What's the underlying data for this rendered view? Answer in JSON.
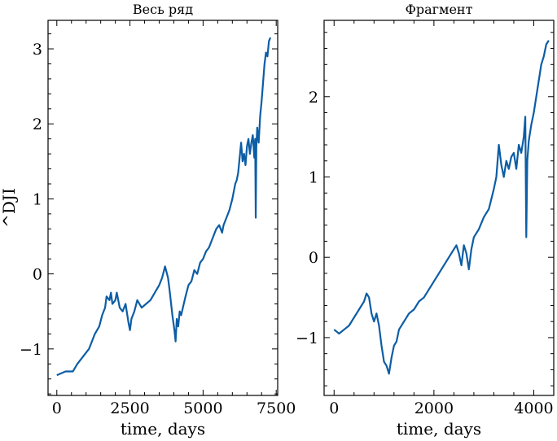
{
  "chart_data": [
    {
      "type": "line",
      "title": "Весь ряд",
      "xlabel": "time, days",
      "ylabel": "^DJI",
      "xlim": [
        -300,
        7550
      ],
      "ylim": [
        -1.62,
        3.38
      ],
      "xticks": [
        0,
        2500,
        5000,
        7500
      ],
      "xtick_labels": [
        "0",
        "2500",
        "5000",
        "7500"
      ],
      "yticks": [
        -1,
        0,
        1,
        2,
        3
      ],
      "ytick_labels": [
        "−1",
        "0",
        "1",
        "2",
        "3"
      ],
      "grid": false,
      "series": [
        {
          "color": "#0c5da5",
          "x": [
            0,
            300,
            550,
            700,
            900,
            1100,
            1300,
            1450,
            1550,
            1650,
            1700,
            1800,
            1850,
            1900,
            2000,
            2050,
            2150,
            2250,
            2350,
            2450,
            2500,
            2550,
            2650,
            2750,
            2900,
            3050,
            3200,
            3350,
            3500,
            3600,
            3700,
            3800,
            3850,
            3950,
            4020,
            4060,
            4100,
            4150,
            4200,
            4250,
            4400,
            4500,
            4600,
            4700,
            4800,
            4900,
            5000,
            5100,
            5200,
            5300,
            5450,
            5550,
            5650,
            5700,
            5800,
            5900,
            6000,
            6050,
            6100,
            6150,
            6200,
            6250,
            6300,
            6350,
            6400,
            6450,
            6500,
            6550,
            6600,
            6650,
            6700,
            6750,
            6780,
            6800,
            6820,
            6850,
            6900,
            6950,
            7000,
            7050,
            7100,
            7150,
            7200,
            7250,
            7300
          ],
          "values": [
            -1.35,
            -1.3,
            -1.3,
            -1.2,
            -1.1,
            -1.0,
            -0.8,
            -0.7,
            -0.55,
            -0.45,
            -0.3,
            -0.35,
            -0.25,
            -0.4,
            -0.35,
            -0.25,
            -0.45,
            -0.5,
            -0.4,
            -0.65,
            -0.75,
            -0.6,
            -0.5,
            -0.35,
            -0.45,
            -0.4,
            -0.35,
            -0.25,
            -0.15,
            -0.05,
            0.1,
            -0.05,
            -0.2,
            -0.55,
            -0.75,
            -0.9,
            -0.6,
            -0.7,
            -0.5,
            -0.55,
            -0.3,
            -0.15,
            -0.1,
            0.05,
            0.0,
            0.15,
            0.2,
            0.3,
            0.35,
            0.45,
            0.6,
            0.65,
            0.55,
            0.65,
            0.75,
            0.85,
            1.0,
            1.1,
            1.2,
            1.25,
            1.35,
            1.55,
            1.75,
            1.5,
            1.6,
            1.45,
            1.7,
            1.8,
            1.6,
            1.75,
            1.85,
            1.55,
            1.8,
            0.75,
            1.7,
            1.95,
            1.75,
            2.1,
            2.3,
            2.55,
            2.8,
            2.95,
            2.9,
            3.1,
            3.15
          ]
        }
      ]
    },
    {
      "type": "line",
      "title": "Фрагмент",
      "xlabel": "time, days",
      "ylabel": "",
      "xlim": [
        -200,
        4400
      ],
      "ylim": [
        -1.72,
        2.95
      ],
      "xticks": [
        0,
        2000,
        4000
      ],
      "xtick_labels": [
        "0",
        "2000",
        "4000"
      ],
      "yticks": [
        -1,
        0,
        1,
        2
      ],
      "ytick_labels": [
        "−1",
        "0",
        "1",
        "2"
      ],
      "grid": false,
      "series": [
        {
          "color": "#0c5da5",
          "x": [
            0,
            100,
            200,
            300,
            400,
            500,
            600,
            650,
            700,
            750,
            800,
            850,
            900,
            950,
            1000,
            1050,
            1100,
            1150,
            1200,
            1250,
            1300,
            1400,
            1500,
            1600,
            1700,
            1800,
            1900,
            2000,
            2100,
            2200,
            2300,
            2400,
            2450,
            2500,
            2550,
            2600,
            2650,
            2700,
            2750,
            2800,
            2900,
            3000,
            3100,
            3200,
            3250,
            3300,
            3350,
            3400,
            3450,
            3500,
            3550,
            3600,
            3650,
            3700,
            3750,
            3800,
            3830,
            3850,
            3870,
            3900,
            3950,
            4000,
            4050,
            4100,
            4150,
            4200,
            4250,
            4300
          ],
          "values": [
            -0.9,
            -0.95,
            -0.9,
            -0.85,
            -0.75,
            -0.65,
            -0.55,
            -0.45,
            -0.5,
            -0.7,
            -0.8,
            -0.7,
            -0.85,
            -1.1,
            -1.3,
            -1.35,
            -1.45,
            -1.25,
            -1.1,
            -1.05,
            -0.9,
            -0.8,
            -0.7,
            -0.65,
            -0.55,
            -0.5,
            -0.4,
            -0.3,
            -0.2,
            -0.1,
            0.0,
            0.1,
            0.15,
            0.05,
            -0.1,
            0.15,
            0.05,
            -0.15,
            0.1,
            0.25,
            0.35,
            0.5,
            0.6,
            0.85,
            1.0,
            1.4,
            1.15,
            1.0,
            1.2,
            1.1,
            1.25,
            1.3,
            1.1,
            1.4,
            1.3,
            1.5,
            1.75,
            0.25,
            1.2,
            1.45,
            1.65,
            1.8,
            2.0,
            2.2,
            2.4,
            2.5,
            2.65,
            2.7
          ]
        }
      ]
    }
  ]
}
